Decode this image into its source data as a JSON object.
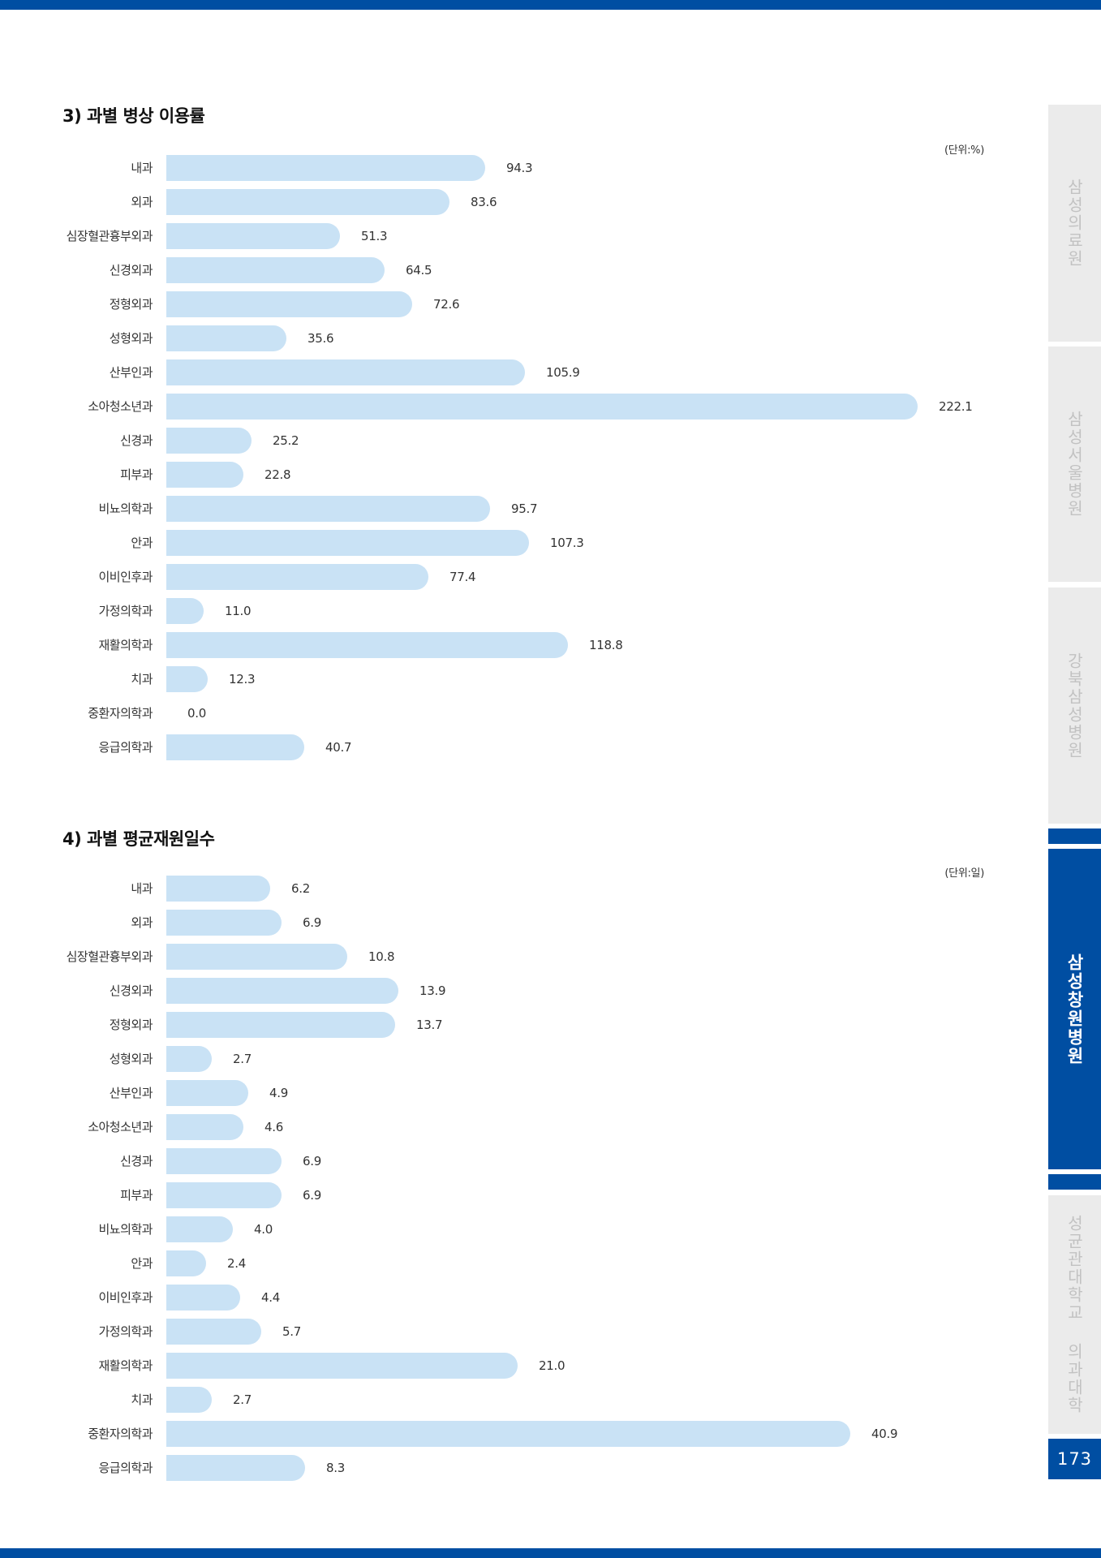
{
  "colors": {
    "accent": "#004ea2",
    "bar": "#c9e2f5",
    "tab_inactive": "#ebebeb",
    "tab_inactive_text": "#c2c2c2"
  },
  "sidebar": {
    "tabs": [
      {
        "label": "삼성의료원",
        "active": false
      },
      {
        "label": "삼성서울병원",
        "active": false
      },
      {
        "label": "강북삼성병원",
        "active": false
      },
      {
        "label": "삼성창원병원",
        "active": true
      },
      {
        "label": "성균관대학교 의과대학",
        "active": false
      }
    ],
    "page_number": "173"
  },
  "sections": [
    {
      "title": "3) 과별 병상 이용률",
      "unit": "(단위:%)"
    },
    {
      "title": "4) 과별 평균재원일수",
      "unit": "(단위:일)"
    }
  ],
  "chart_data": [
    {
      "type": "bar",
      "orientation": "horizontal",
      "title": "3) 과별 병상 이용률",
      "unit": "(단위:%)",
      "categories": [
        "내과",
        "외과",
        "심장혈관흉부외과",
        "신경외과",
        "정형외과",
        "성형외과",
        "산부인과",
        "소아청소년과",
        "신경과",
        "피부과",
        "비뇨의학과",
        "안과",
        "이비인후과",
        "가정의학과",
        "재활의학과",
        "치과",
        "중환자의학과",
        "응급의학과"
      ],
      "values": [
        94.3,
        83.6,
        51.3,
        64.5,
        72.6,
        35.6,
        105.9,
        222.1,
        25.2,
        22.8,
        95.7,
        107.3,
        77.4,
        11.0,
        118.8,
        12.3,
        0.0,
        40.7
      ],
      "value_labels": [
        "94.3",
        "83.6",
        "51.3",
        "64.5",
        "72.6",
        "35.6",
        "105.9",
        "222.1",
        "25.2",
        "22.8",
        "95.7",
        "107.3",
        "77.4",
        "11.0",
        "118.8",
        "12.3",
        "0.0",
        "40.7"
      ],
      "xlim": [
        0,
        222.1
      ],
      "grid": false,
      "legend": "none"
    },
    {
      "type": "bar",
      "orientation": "horizontal",
      "title": "4) 과별 평균재원일수",
      "unit": "(단위:일)",
      "categories": [
        "내과",
        "외과",
        "심장혈관흉부외과",
        "신경외과",
        "정형외과",
        "성형외과",
        "산부인과",
        "소아청소년과",
        "신경과",
        "피부과",
        "비뇨의학과",
        "안과",
        "이비인후과",
        "가정의학과",
        "재활의학과",
        "치과",
        "중환자의학과",
        "응급의학과"
      ],
      "values": [
        6.2,
        6.9,
        10.8,
        13.9,
        13.7,
        2.7,
        4.9,
        4.6,
        6.9,
        6.9,
        4.0,
        2.4,
        4.4,
        5.7,
        21.0,
        2.7,
        40.9,
        8.3
      ],
      "value_labels": [
        "6.2",
        "6.9",
        "10.8",
        "13.9",
        "13.7",
        "2.7",
        "4.9",
        "4.6",
        "6.9",
        "6.9",
        "4.0",
        "2.4",
        "4.4",
        "5.7",
        "21.0",
        "2.7",
        "40.9",
        "8.3"
      ],
      "xlim": [
        0,
        40.9
      ],
      "grid": false,
      "legend": "none"
    }
  ]
}
